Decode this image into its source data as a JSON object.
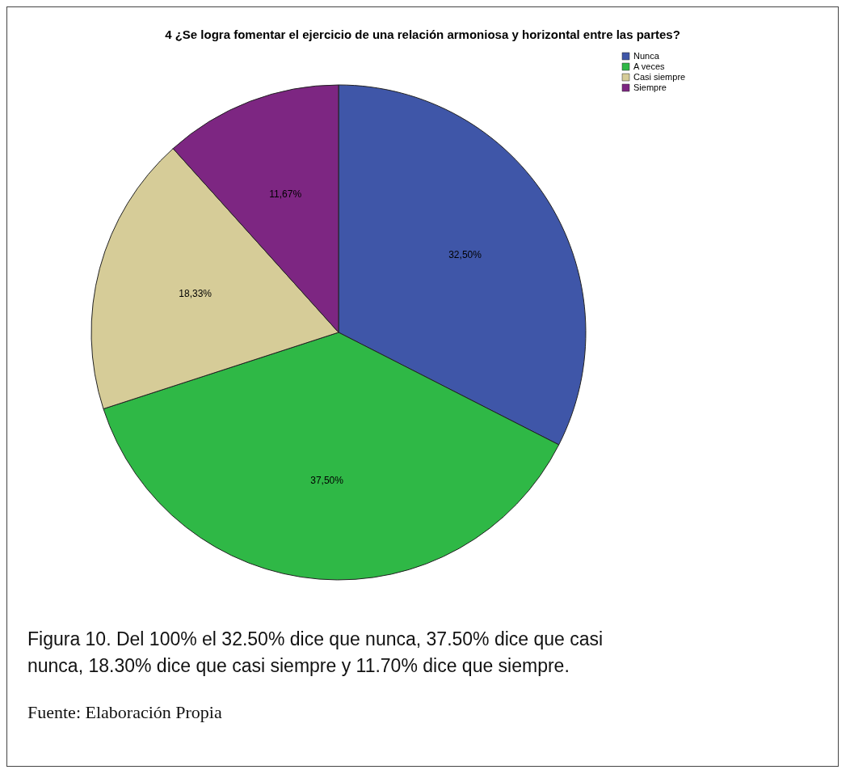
{
  "chart_data": {
    "type": "pie",
    "title": "4 ¿Se logra fomentar el ejercicio de una relación armoniosa y horizontal entre las partes?",
    "categories": [
      "Nunca",
      "A veces",
      "Casi siempre",
      "Siempre"
    ],
    "values": [
      32.5,
      37.5,
      18.33,
      11.67
    ],
    "colors": [
      "#3f56a8",
      "#2fb846",
      "#d6cc98",
      "#7d2682"
    ],
    "value_labels": [
      "32,50%",
      "37,50%",
      "18,33%",
      "11,67%"
    ],
    "legend": "top right",
    "annotations": [
      "Figura 10. Del 100% el 32.50% dice que nunca, 37.50% dice que casi nunca, 18.30% dice que casi siempre y 11.70% dice que siempre.",
      "Fuente: Elaboración Propia"
    ]
  }
}
